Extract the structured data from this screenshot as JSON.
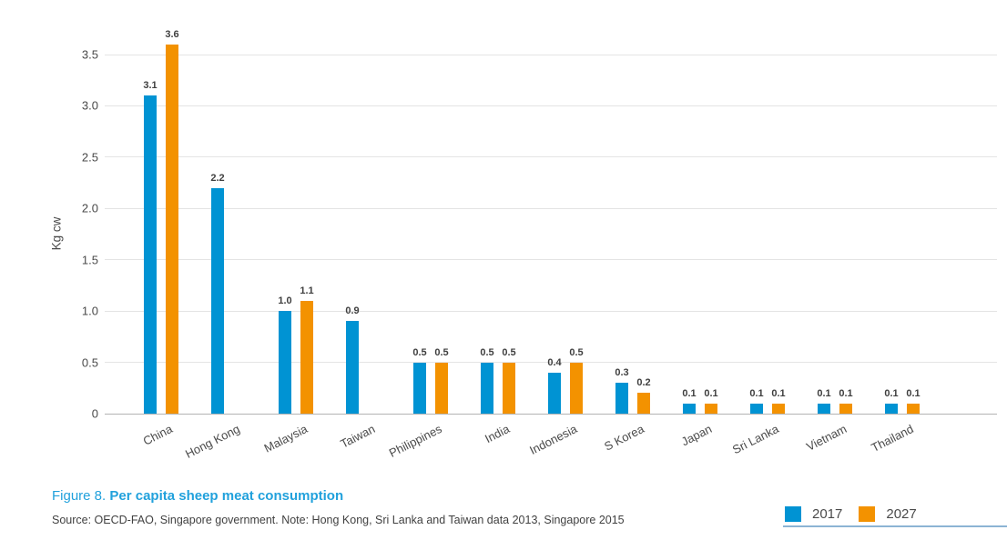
{
  "title": {
    "figure_label": "Figure 8.",
    "text": "Per capita sheep meat consumption"
  },
  "source_note": "Source: OECD-FAO, Singapore government. Note: Hong Kong, Sri Lanka and Taiwan data 2013, Singapore 2015",
  "colors": {
    "series_2017": "#0093d3",
    "series_2027": "#f39200",
    "title_blue": "#21a1dc",
    "grid": "#e4e4e4",
    "baseline": "#b3b3b3",
    "text_dark": "#414141"
  },
  "chart_data": {
    "type": "bar",
    "title": "Figure 8. Per capita sheep meat consumption",
    "xlabel": "",
    "ylabel": "Kg cw",
    "ylim": [
      0,
      3.5
    ],
    "ytick_step": 0.5,
    "ytick_labels": [
      "0",
      "0.5",
      "1.0",
      "1.5",
      "2.0",
      "2.5",
      "3.0",
      "3.5"
    ],
    "grid": true,
    "legend_position": "bottom-right",
    "categories": [
      "China",
      "Hong Kong",
      "Malaysia",
      "Taiwan",
      "Philippines",
      "India",
      "Indonesia",
      "S Korea",
      "Japan",
      "Sri Lanka",
      "Vietnam",
      "Thailand"
    ],
    "series": [
      {
        "name": "2017",
        "color": "#0093d3",
        "values": [
          3.1,
          2.2,
          1.0,
          0.9,
          0.5,
          0.5,
          0.4,
          0.3,
          0.1,
          0.1,
          0.1,
          0.1
        ]
      },
      {
        "name": "2027",
        "color": "#f39200",
        "values": [
          3.6,
          null,
          1.1,
          null,
          0.5,
          0.5,
          0.5,
          0.2,
          0.1,
          0.1,
          0.1,
          0.1
        ]
      }
    ]
  }
}
